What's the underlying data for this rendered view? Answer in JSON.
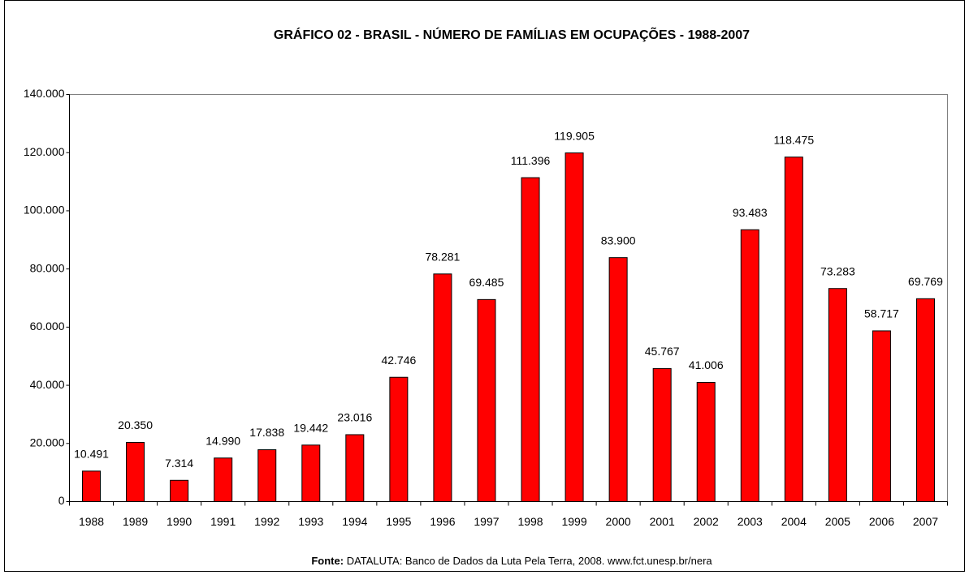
{
  "chart_data": {
    "type": "bar",
    "title": "GRÁFICO 02 - BRASIL - NÚMERO DE FAMÍLIAS EM  OCUPAÇÕES - 1988-2007",
    "categories": [
      "1988",
      "1989",
      "1990",
      "1991",
      "1992",
      "1993",
      "1994",
      "1995",
      "1996",
      "1997",
      "1998",
      "1999",
      "2000",
      "2001",
      "2002",
      "2003",
      "2004",
      "2005",
      "2006",
      "2007"
    ],
    "values": [
      10491,
      20350,
      7314,
      14990,
      17838,
      19442,
      23016,
      42746,
      78281,
      69485,
      111396,
      119905,
      83900,
      45767,
      41006,
      93483,
      118475,
      73283,
      58717,
      69769
    ],
    "value_labels": [
      "10.491",
      "20.350",
      "7.314",
      "14.990",
      "17.838",
      "19.442",
      "23.016",
      "42.746",
      "78.281",
      "69.485",
      "111.396",
      "119.905",
      "83.900",
      "45.767",
      "41.006",
      "93.483",
      "118.475",
      "73.283",
      "58.717",
      "69.769"
    ],
    "color": "#ff0000",
    "ylim": [
      0,
      140000
    ],
    "yticks": [
      0,
      {
        "value": 20000,
        "label": "20.000"
      },
      {
        "value": 40000,
        "label": "40.000"
      },
      {
        "value": 60000,
        "label": "60.000"
      },
      {
        "value": 80000,
        "label": "80.000"
      },
      {
        "value": 100000,
        "label": "100.000"
      },
      {
        "value": 120000,
        "label": "120.000"
      },
      {
        "value": 140000,
        "label": "140.000"
      }
    ],
    "grid": false,
    "source_label": "Fonte:",
    "source": " DATALUTA: Banco de Dados da Luta Pela Terra, 2008. www.fct.unesp.br/nera"
  }
}
